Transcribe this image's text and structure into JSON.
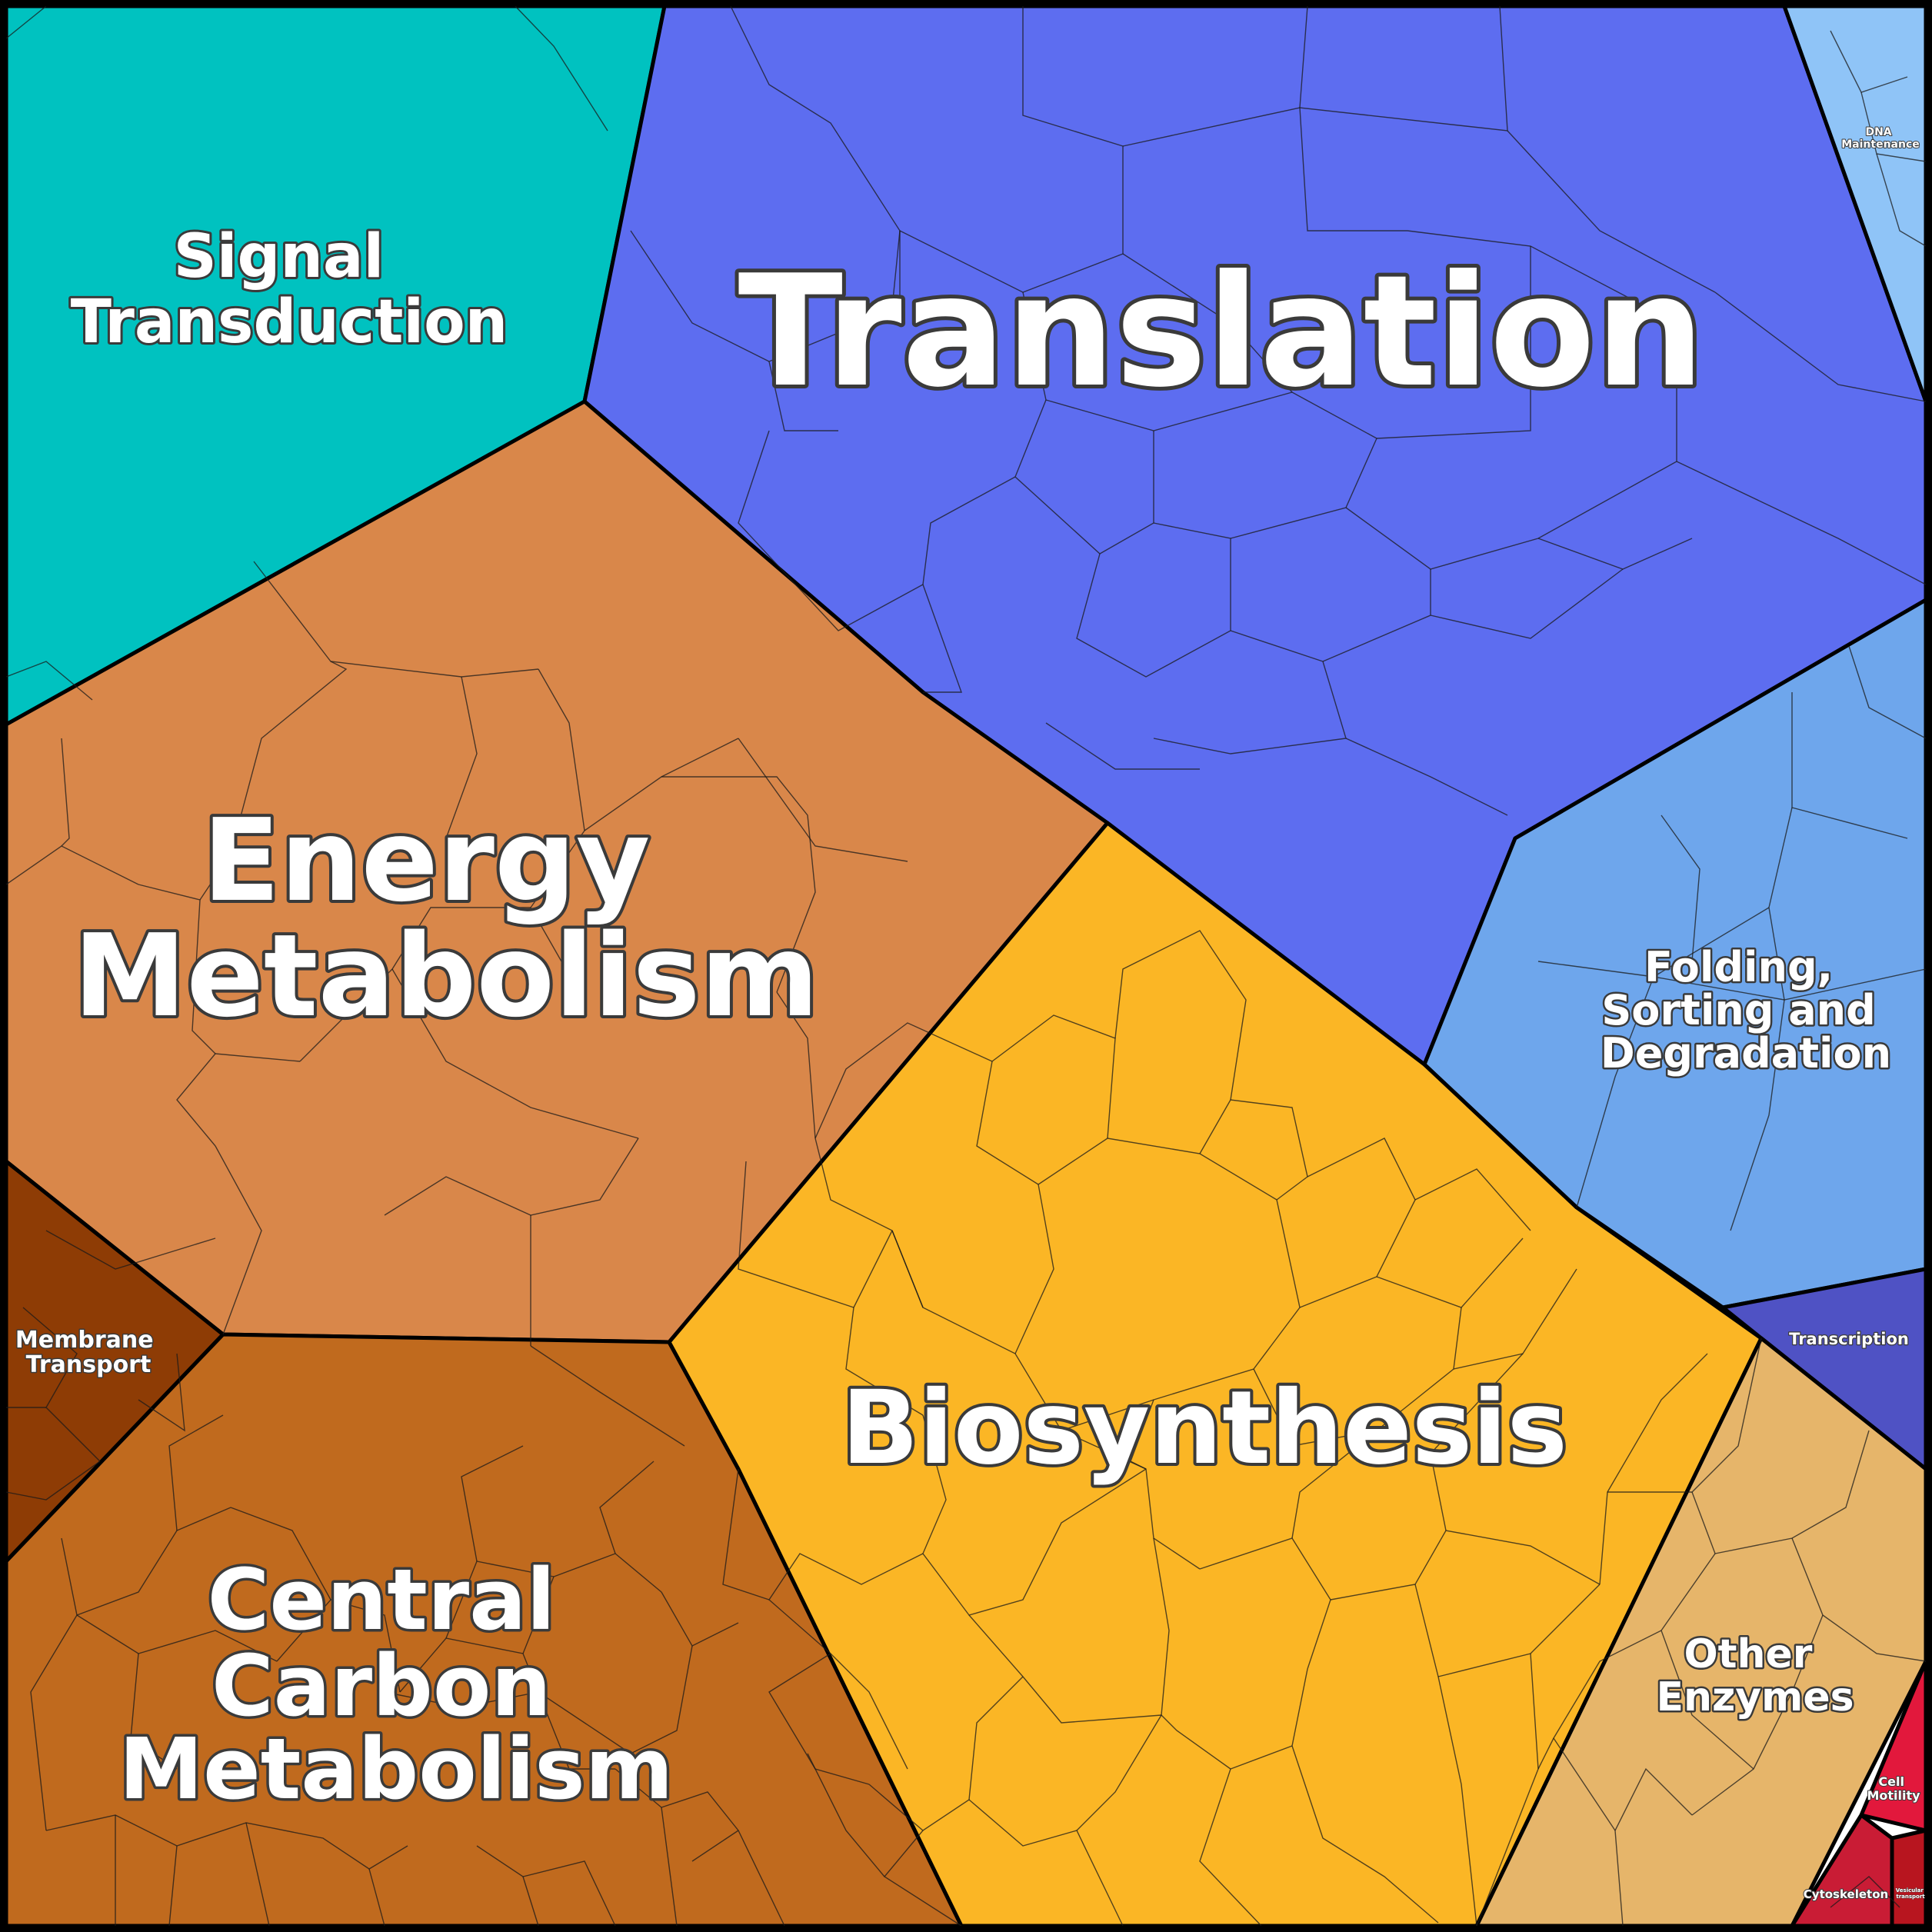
{
  "regions": [
    {
      "key": "signal",
      "lines": [
        "Signal",
        "Transduction"
      ],
      "color": "#00c2c0"
    },
    {
      "key": "translation",
      "lines": [
        "Translation"
      ],
      "color": "#5d6df0"
    },
    {
      "key": "dna",
      "lines": [
        "DNA",
        "Maintenance"
      ],
      "color": "#8fc4f7"
    },
    {
      "key": "folding",
      "lines": [
        "Folding,",
        "Sorting and",
        "Degradation"
      ],
      "color": "#6ea6ec"
    },
    {
      "key": "energy",
      "lines": [
        "Energy",
        "Metabolism"
      ],
      "color": "#d9874a"
    },
    {
      "key": "membrane",
      "lines": [
        "Membrane",
        "Transport"
      ],
      "color": "#8e3c05"
    },
    {
      "key": "central",
      "lines": [
        "Central",
        "Carbon",
        "Metabolism"
      ],
      "color": "#c06a1e"
    },
    {
      "key": "biosynthesis",
      "lines": [
        "Biosynthesis"
      ],
      "color": "#fbb625"
    },
    {
      "key": "transcription",
      "lines": [
        "Transcription"
      ],
      "color": "#4f52c4"
    },
    {
      "key": "enzymes",
      "lines": [
        "Other",
        "Enzymes"
      ],
      "color": "#e6b56a"
    },
    {
      "key": "motility",
      "lines": [
        "Cell",
        "Motility"
      ],
      "color": "#e2183c"
    },
    {
      "key": "cytoskeleton",
      "lines": [
        "Cytoskeleton"
      ],
      "color": "#c91c35"
    },
    {
      "key": "vesicular",
      "lines": [
        "Vesicular",
        "transport"
      ],
      "color": "#b8151f"
    }
  ]
}
